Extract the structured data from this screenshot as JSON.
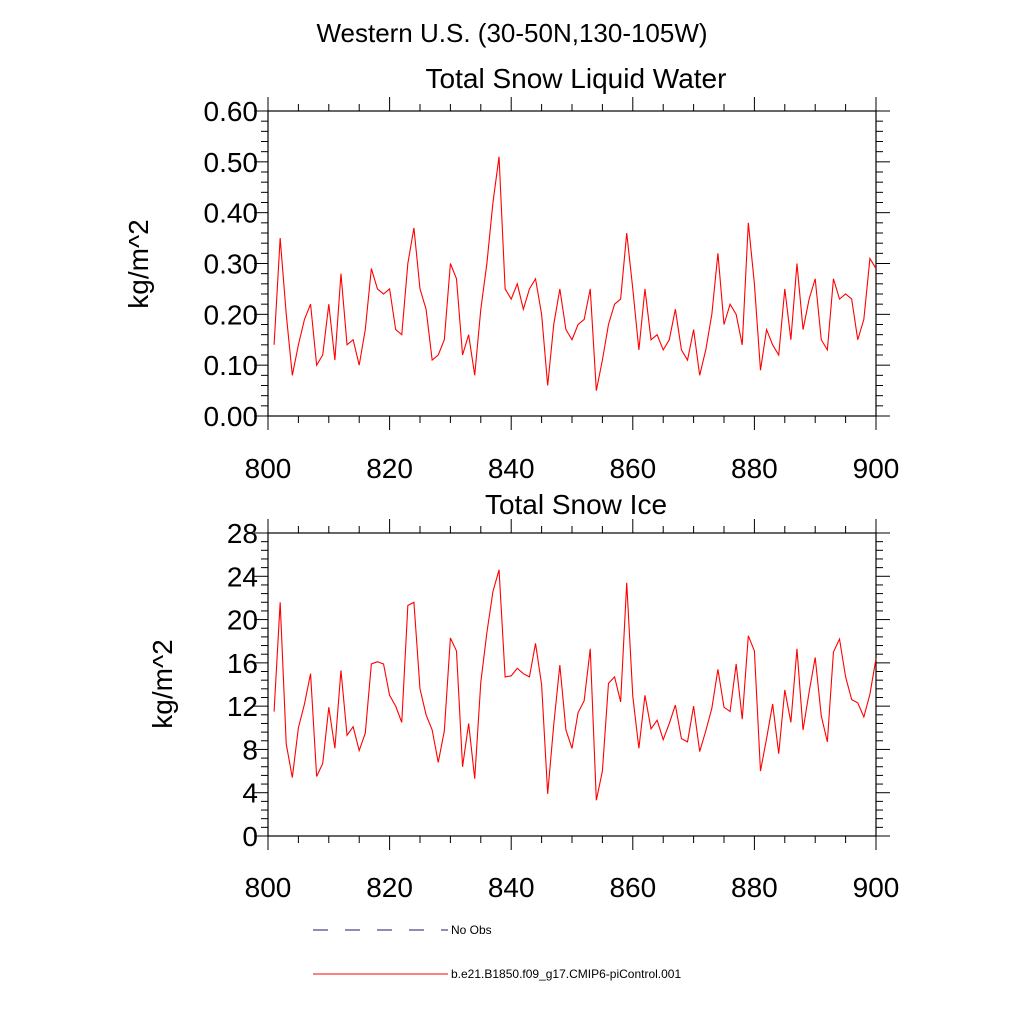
{
  "figure_title": "Western U.S. (30-50N,130-105W)",
  "legend": {
    "entries": [
      {
        "label": "No Obs",
        "style": "dashed",
        "color": "#1a1a6e"
      },
      {
        "label": "b.e21.B1850.f09_g17.CMIP6-piControl.001",
        "style": "solid",
        "color": "#ff0000"
      }
    ]
  },
  "chart_data": [
    {
      "type": "line",
      "title": "Total Snow Liquid Water",
      "xlabel": "",
      "ylabel": "kg/m^2",
      "xlim": [
        800,
        900
      ],
      "ylim": [
        0,
        0.6
      ],
      "xticks": [
        800,
        820,
        840,
        860,
        880,
        900
      ],
      "xtick_labels": [
        "800",
        "820",
        "840",
        "860",
        "880",
        "900"
      ],
      "yticks": [
        0,
        0.1,
        0.2,
        0.3,
        0.4,
        0.5,
        0.6
      ],
      "ytick_labels": [
        "0.00",
        "0.10",
        "0.20",
        "0.30",
        "0.40",
        "0.50",
        "0.60"
      ],
      "grid": false,
      "series": [
        {
          "name": "b.e21.B1850.f09_g17.CMIP6-piControl.001",
          "color": "#ff0000",
          "x_start": 801,
          "values": [
            0.14,
            0.35,
            0.2,
            0.08,
            0.14,
            0.19,
            0.22,
            0.1,
            0.12,
            0.22,
            0.11,
            0.28,
            0.14,
            0.15,
            0.1,
            0.17,
            0.29,
            0.25,
            0.24,
            0.25,
            0.17,
            0.16,
            0.3,
            0.37,
            0.25,
            0.21,
            0.11,
            0.12,
            0.15,
            0.3,
            0.27,
            0.12,
            0.16,
            0.08,
            0.21,
            0.3,
            0.42,
            0.51,
            0.25,
            0.23,
            0.26,
            0.21,
            0.25,
            0.27,
            0.2,
            0.06,
            0.18,
            0.25,
            0.17,
            0.15,
            0.18,
            0.19,
            0.25,
            0.05,
            0.11,
            0.18,
            0.22,
            0.23,
            0.36,
            0.25,
            0.13,
            0.25,
            0.15,
            0.16,
            0.13,
            0.15,
            0.21,
            0.13,
            0.11,
            0.17,
            0.08,
            0.13,
            0.2,
            0.32,
            0.18,
            0.22,
            0.2,
            0.14,
            0.38,
            0.26,
            0.09,
            0.17,
            0.14,
            0.12,
            0.25,
            0.15,
            0.3,
            0.17,
            0.23,
            0.27,
            0.15,
            0.13,
            0.27,
            0.23,
            0.24,
            0.23,
            0.15,
            0.19,
            0.31,
            0.29
          ]
        }
      ]
    },
    {
      "type": "line",
      "title": "Total Snow Ice",
      "xlabel": "",
      "ylabel": "kg/m^2",
      "xlim": [
        800,
        900
      ],
      "ylim": [
        0,
        28
      ],
      "xticks": [
        800,
        820,
        840,
        860,
        880,
        900
      ],
      "xtick_labels": [
        "800",
        "820",
        "840",
        "860",
        "880",
        "900"
      ],
      "yticks": [
        0,
        4,
        8,
        12,
        16,
        20,
        24,
        28
      ],
      "ytick_labels": [
        "0",
        "4",
        "8",
        "12",
        "16",
        "20",
        "24",
        "28"
      ],
      "grid": false,
      "series": [
        {
          "name": "b.e21.B1850.f09_g17.CMIP6-piControl.001",
          "color": "#ff0000",
          "x_start": 801,
          "values": [
            11.5,
            21.6,
            8.5,
            5.4,
            10.0,
            12.2,
            15.0,
            5.5,
            6.7,
            11.9,
            8.1,
            15.3,
            9.3,
            10.1,
            7.9,
            9.5,
            15.9,
            16.1,
            15.9,
            13.0,
            12.0,
            10.5,
            21.3,
            21.6,
            13.6,
            11.2,
            9.8,
            6.8,
            9.7,
            18.3,
            17.1,
            6.4,
            10.4,
            5.3,
            14.2,
            18.8,
            22.6,
            24.6,
            14.7,
            14.8,
            15.5,
            15.0,
            14.7,
            17.8,
            14.0,
            3.9,
            10.3,
            15.8,
            9.8,
            8.1,
            11.4,
            12.5,
            17.3,
            3.3,
            6.0,
            14.1,
            14.7,
            12.4,
            23.4,
            12.9,
            8.1,
            13.0,
            9.9,
            10.7,
            8.9,
            10.4,
            12.1,
            9.0,
            8.7,
            12.0,
            7.8,
            9.7,
            11.8,
            15.4,
            11.9,
            11.5,
            15.9,
            10.8,
            18.5,
            17.1,
            6.0,
            9.0,
            12.2,
            7.6,
            13.5,
            10.5,
            17.3,
            9.8,
            13.3,
            16.5,
            11.1,
            8.7,
            17.0,
            18.2,
            14.7,
            12.6,
            12.3,
            11.0,
            13.1,
            16.4
          ]
        }
      ]
    }
  ]
}
